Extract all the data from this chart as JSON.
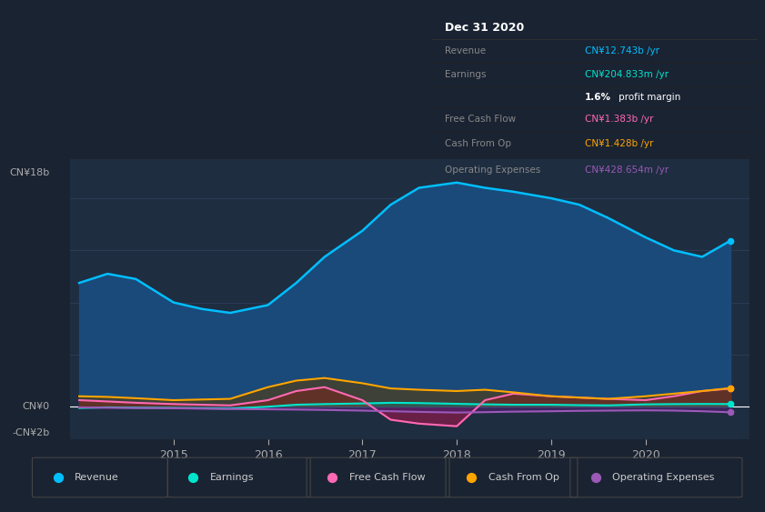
{
  "bg_color": "#1a2332",
  "plot_bg_color": "#1e2d40",
  "grid_color": "#2a3d55",
  "y_label_18b": "CN¥18b",
  "y_label_0": "CN¥0",
  "y_label_neg2b": "-CN¥2b",
  "ylim": [
    -2500000000.0,
    19000000000.0
  ],
  "tooltip_title": "Dec 31 2020",
  "series": {
    "revenue": {
      "color": "#00bfff",
      "fill_color": "#1a4a7a",
      "x": [
        2014.0,
        2014.3,
        2014.6,
        2015.0,
        2015.3,
        2015.6,
        2016.0,
        2016.3,
        2016.6,
        2017.0,
        2017.3,
        2017.6,
        2018.0,
        2018.3,
        2018.6,
        2019.0,
        2019.3,
        2019.6,
        2020.0,
        2020.3,
        2020.6,
        2020.9
      ],
      "y": [
        9500000000.0,
        10200000000.0,
        9800000000.0,
        8000000000.0,
        7500000000.0,
        7200000000.0,
        7800000000.0,
        9500000000.0,
        11500000000.0,
        13500000000.0,
        15500000000.0,
        16800000000.0,
        17200000000.0,
        16800000000.0,
        16500000000.0,
        16000000000.0,
        15500000000.0,
        14500000000.0,
        13000000000.0,
        12000000000.0,
        11500000000.0,
        12743000000.0
      ]
    },
    "earnings": {
      "color": "#00e5cc",
      "fill_color": "#00e5cc",
      "x": [
        2014.0,
        2014.3,
        2014.6,
        2015.0,
        2015.3,
        2015.6,
        2016.0,
        2016.3,
        2016.6,
        2017.0,
        2017.3,
        2017.6,
        2018.0,
        2018.3,
        2018.6,
        2019.0,
        2019.3,
        2019.6,
        2020.0,
        2020.3,
        2020.6,
        2020.9
      ],
      "y": [
        -100000000.0,
        -50000000.0,
        -80000000.0,
        -100000000.0,
        -120000000.0,
        -150000000.0,
        0.0,
        150000000.0,
        200000000.0,
        250000000.0,
        300000000.0,
        280000000.0,
        220000000.0,
        180000000.0,
        150000000.0,
        150000000.0,
        120000000.0,
        100000000.0,
        180000000.0,
        200000000.0,
        210000000.0,
        205000000.0
      ]
    },
    "free_cash_flow": {
      "color": "#ff69b4",
      "fill_color": "#8b1a4a",
      "x": [
        2014.0,
        2014.3,
        2014.6,
        2015.0,
        2015.3,
        2015.6,
        2016.0,
        2016.3,
        2016.6,
        2017.0,
        2017.3,
        2017.6,
        2018.0,
        2018.3,
        2018.6,
        2019.0,
        2019.3,
        2019.6,
        2020.0,
        2020.3,
        2020.6,
        2020.9
      ],
      "y": [
        500000000.0,
        400000000.0,
        300000000.0,
        200000000.0,
        150000000.0,
        100000000.0,
        500000000.0,
        1200000000.0,
        1500000000.0,
        500000000.0,
        -1000000000.0,
        -1300000000.0,
        -1500000000.0,
        500000000.0,
        1000000000.0,
        800000000.0,
        700000000.0,
        600000000.0,
        500000000.0,
        800000000.0,
        1200000000.0,
        1383000000.0
      ]
    },
    "cash_from_op": {
      "color": "#ffa500",
      "fill_color": "#5a3a00",
      "x": [
        2014.0,
        2014.3,
        2014.6,
        2015.0,
        2015.3,
        2015.6,
        2016.0,
        2016.3,
        2016.6,
        2017.0,
        2017.3,
        2017.6,
        2018.0,
        2018.3,
        2018.6,
        2019.0,
        2019.3,
        2019.6,
        2020.0,
        2020.3,
        2020.6,
        2020.9
      ],
      "y": [
        800000000.0,
        750000000.0,
        650000000.0,
        500000000.0,
        550000000.0,
        600000000.0,
        1500000000.0,
        2000000000.0,
        2200000000.0,
        1800000000.0,
        1400000000.0,
        1300000000.0,
        1200000000.0,
        1300000000.0,
        1100000000.0,
        800000000.0,
        700000000.0,
        600000000.0,
        800000000.0,
        1000000000.0,
        1200000000.0,
        1428000000.0
      ]
    },
    "operating_expenses": {
      "color": "#9b59b6",
      "fill_color": "#4a2070",
      "x": [
        2014.0,
        2014.3,
        2014.6,
        2015.0,
        2015.3,
        2015.6,
        2016.0,
        2016.3,
        2016.6,
        2017.0,
        2017.3,
        2017.6,
        2018.0,
        2018.3,
        2018.6,
        2019.0,
        2019.3,
        2019.6,
        2020.0,
        2020.3,
        2020.6,
        2020.9
      ],
      "y": [
        -50000000.0,
        -80000000.0,
        -100000000.0,
        -120000000.0,
        -150000000.0,
        -180000000.0,
        -200000000.0,
        -220000000.0,
        -250000000.0,
        -300000000.0,
        -350000000.0,
        -400000000.0,
        -450000000.0,
        -420000000.0,
        -380000000.0,
        -350000000.0,
        -320000000.0,
        -300000000.0,
        -280000000.0,
        -300000000.0,
        -350000000.0,
        -429000000.0
      ]
    }
  },
  "legend": [
    {
      "label": "Revenue",
      "color": "#00bfff"
    },
    {
      "label": "Earnings",
      "color": "#00e5cc"
    },
    {
      "label": "Free Cash Flow",
      "color": "#ff69b4"
    },
    {
      "label": "Cash From Op",
      "color": "#ffa500"
    },
    {
      "label": "Operating Expenses",
      "color": "#9b59b6"
    }
  ]
}
